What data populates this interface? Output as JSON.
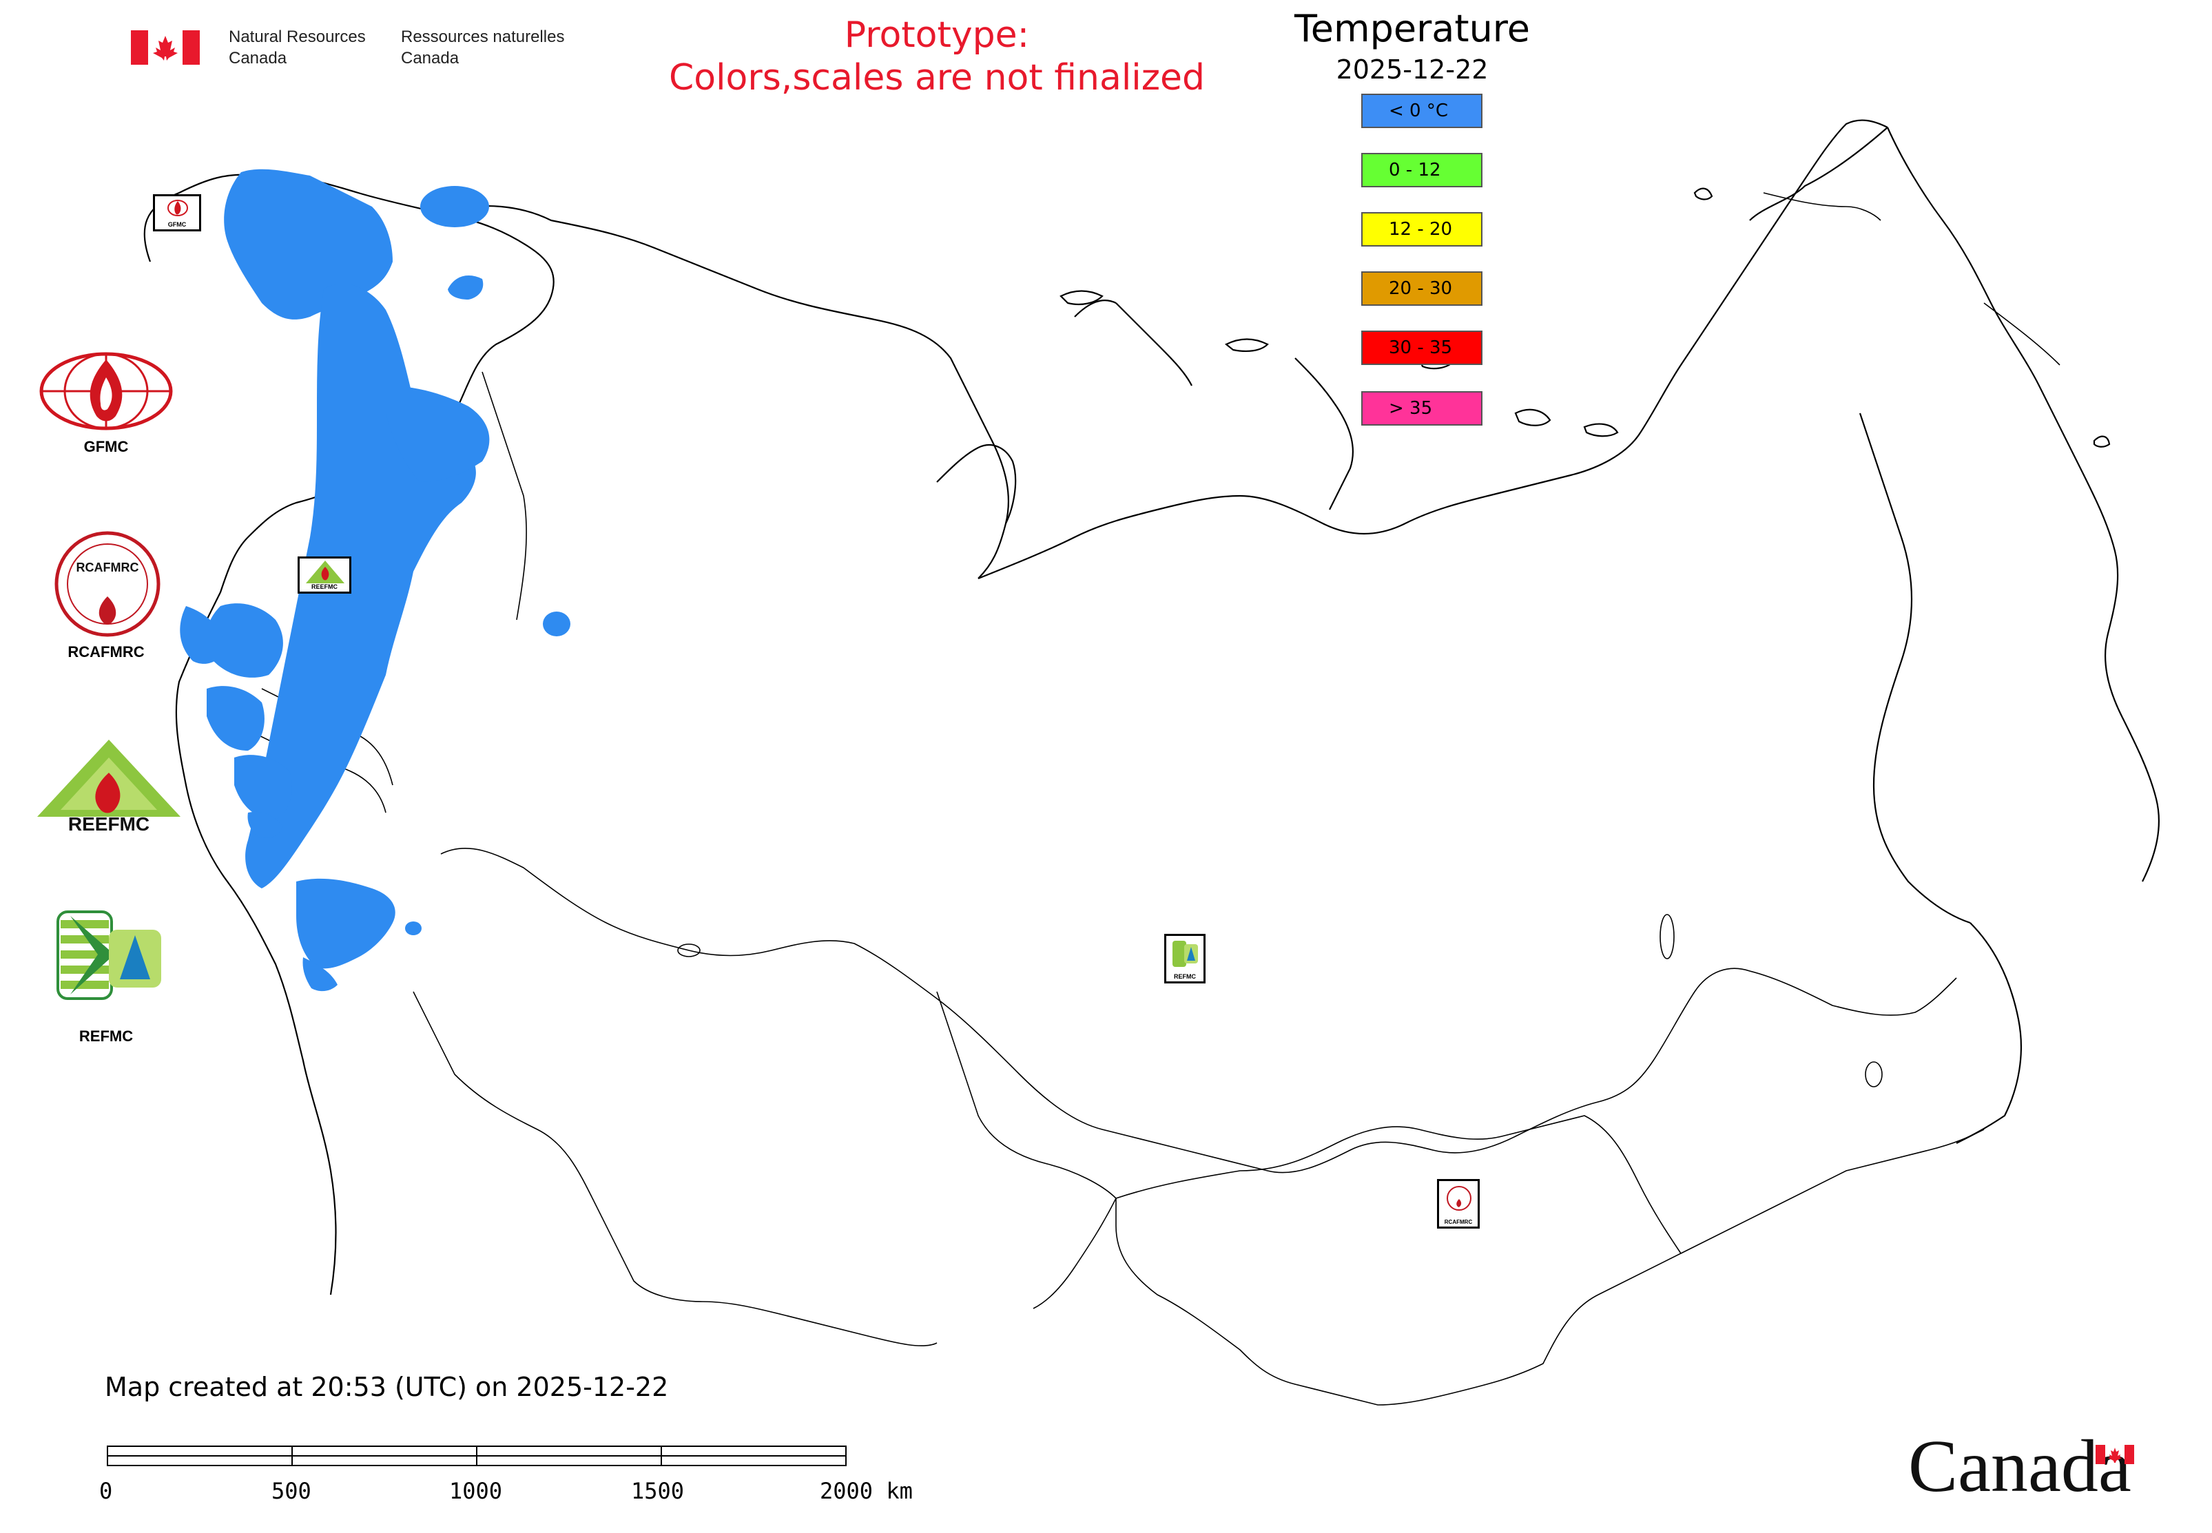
{
  "header": {
    "nrcan_en_line1": "Natural Resources",
    "nrcan_en_line2": "Canada",
    "nrcan_fr_line1": "Ressources naturelles",
    "nrcan_fr_line2": "Canada",
    "prototype_line1": "Prototype:",
    "prototype_line2": "Colors,scales are not finalized",
    "prototype_color": "#e8192c"
  },
  "legend": {
    "title": "Temperature",
    "date": "2025-12-22",
    "items": [
      {
        "label": "< 0 °C",
        "color": "#3d8ef5"
      },
      {
        "label": "0 - 12",
        "color": "#66ff33"
      },
      {
        "label": "12 - 20",
        "color": "#ffff00"
      },
      {
        "label": "20 - 30",
        "color": "#e09a00"
      },
      {
        "label": "30 - 35",
        "color": "#ff0000"
      },
      {
        "label": "> 35",
        "color": "#ff3399"
      }
    ]
  },
  "logos": {
    "gfmc": "GFMC",
    "rcafmrc": "RCAFMRC",
    "rcafmrc_inner": "RCAFMRC",
    "reefmc": "REEFMC",
    "refmc": "REFMC"
  },
  "map_markers": {
    "gfmc": "GFMC",
    "reefmc": "REEFMC",
    "refmc": "REFMC",
    "rcafmrc": "RCAFMRC"
  },
  "map": {
    "fill_color": "#2f8bf0",
    "boundary_color": "#000000"
  },
  "footer": {
    "created_text": "Map created at 20:53 (UTC) on 2025-12-22",
    "scale_ticks": [
      "0",
      "500",
      "1000",
      "1500",
      "2000 km"
    ],
    "canada_wordmark": "Canada"
  }
}
